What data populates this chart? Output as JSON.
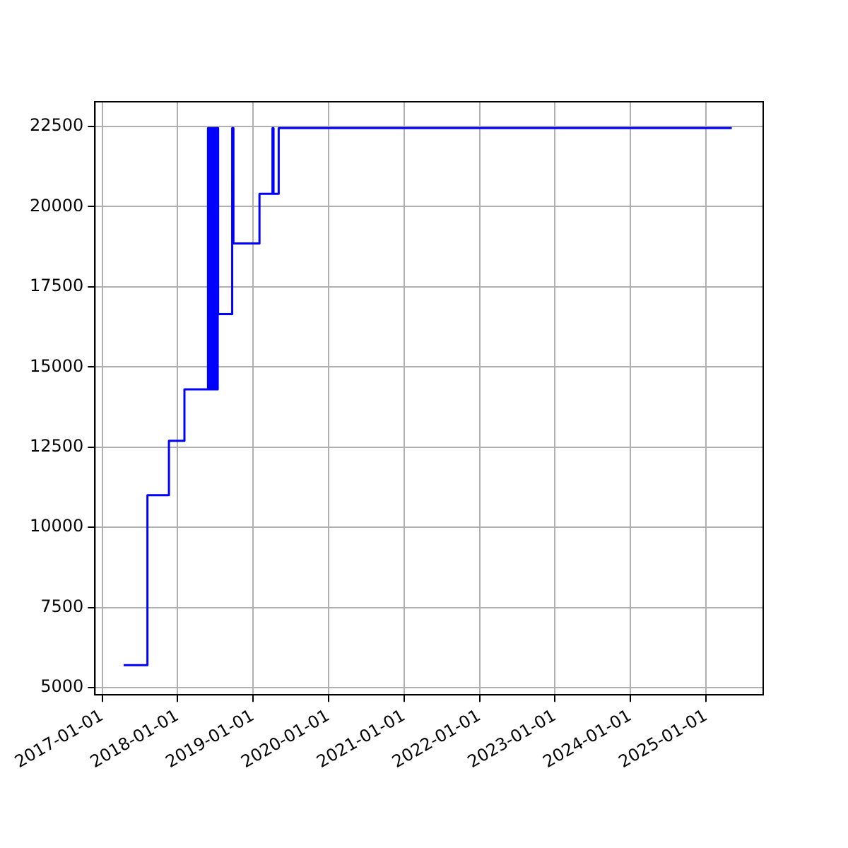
{
  "chart_data": {
    "type": "step",
    "x": [
      "2017-04-15",
      "2017-08-08",
      "2017-11-20",
      "2018-02-03",
      "2018-05-28",
      "2018-06-01",
      "2018-06-05",
      "2018-06-09",
      "2018-06-13",
      "2018-06-17",
      "2018-06-21",
      "2018-06-25",
      "2018-06-29",
      "2018-07-03",
      "2018-07-07",
      "2018-07-11",
      "2018-07-14",
      "2018-07-16",
      "2018-09-22",
      "2018-09-28",
      "2019-02-01",
      "2019-04-05",
      "2019-04-10",
      "2019-05-05",
      "2025-05-05"
    ],
    "series": [
      {
        "color": "#0000ff",
        "values": [
          5700,
          11000,
          12700,
          14300,
          22450,
          14300,
          22450,
          14300,
          22450,
          14300,
          22450,
          14300,
          22450,
          14300,
          22450,
          14300,
          22450,
          16650,
          22450,
          18850,
          20400,
          22450,
          20400,
          22450,
          22450
        ]
      }
    ],
    "xlim": [
      "2016-11-27",
      "2025-10-04"
    ],
    "xticks": [
      "2017-01-01",
      "2018-01-01",
      "2019-01-01",
      "2020-01-01",
      "2021-01-01",
      "2022-01-01",
      "2023-01-01",
      "2024-01-01",
      "2025-01-01"
    ],
    "ylim": [
      4775,
      23270
    ],
    "yticks": [
      5000,
      7500,
      10000,
      12500,
      15000,
      17500,
      20000,
      22500
    ],
    "grid": true,
    "legend": false
  }
}
